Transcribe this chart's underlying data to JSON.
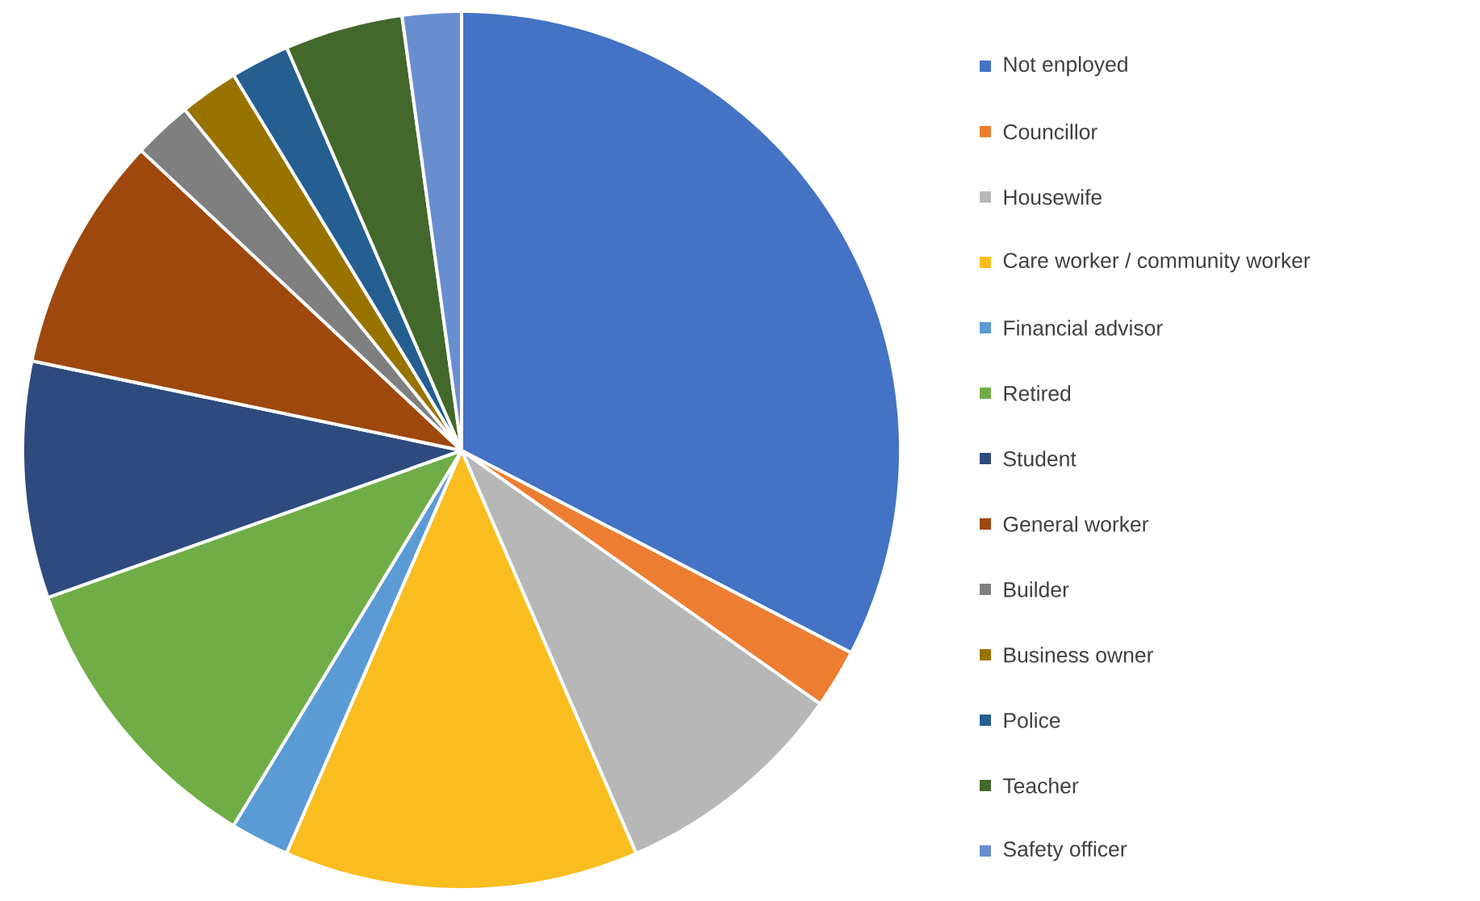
{
  "chart_data": {
    "type": "pie",
    "legend": "right",
    "categories": [
      "Not enployed",
      "Councillor",
      "Housewife",
      "Care worker / community worker",
      "Financial advisor",
      "Retired",
      "Student",
      "General worker",
      "Builder",
      "Business owner",
      "Police",
      "Teacher",
      "Safety officer"
    ],
    "values": [
      32.62,
      2.17,
      8.7,
      13.04,
      2.17,
      10.87,
      8.7,
      8.7,
      2.17,
      2.17,
      2.17,
      4.35,
      2.17
    ],
    "colors": [
      "#4472c4",
      "#ed7d31",
      "#b7b7b7",
      "#f9bd1f",
      "#5b9bd5",
      "#70ad47",
      "#2e4b7f",
      "#9e480e",
      "#7f7f7f",
      "#997300",
      "#255e91",
      "#43682b",
      "#698ed0"
    ]
  }
}
